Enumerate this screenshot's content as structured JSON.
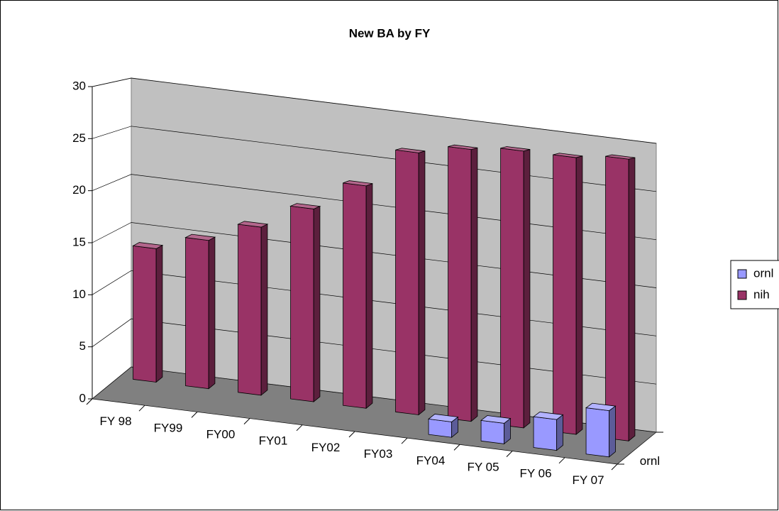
{
  "chart_data": {
    "type": "bar3d",
    "title": "New BA by FY",
    "categories": [
      "FY 98",
      "FY99",
      "FY00",
      "FY01",
      "FY02",
      "FY03",
      "FY04",
      "FY 05",
      "FY 06",
      "FY 07"
    ],
    "series": [
      {
        "name": "ornl",
        "color": "#9999ff",
        "values": [
          null,
          null,
          null,
          null,
          null,
          null,
          1.5,
          2,
          3,
          4.5
        ]
      },
      {
        "name": "nih",
        "color": "#993366",
        "values": [
          13.5,
          15,
          17,
          19.5,
          22.5,
          26.5,
          27.5,
          28,
          28,
          28.5
        ]
      }
    ],
    "depth_labels": [
      "ornl"
    ],
    "ylim": [
      0,
      30
    ],
    "yticks": [
      0,
      5,
      10,
      15,
      20,
      25,
      30
    ],
    "grid": true,
    "legend": "right"
  }
}
